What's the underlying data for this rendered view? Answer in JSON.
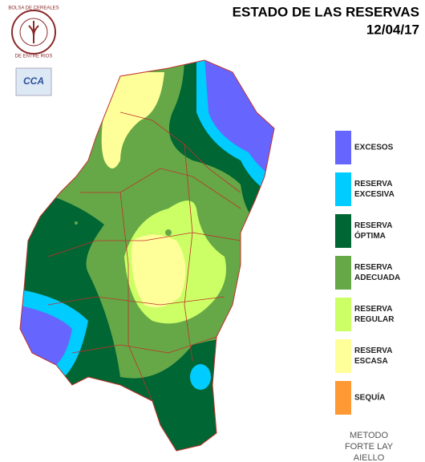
{
  "header": {
    "title": "ESTADO DE LAS RESERVAS",
    "date": "12/04/17"
  },
  "logo": {
    "ring_top": "BOLSA DE CEREALES",
    "ring_bottom": "DE ENTRE RIOS",
    "badge": "CCA"
  },
  "legend": [
    {
      "lines": [
        "EXCESOS"
      ],
      "color": "#6666ff"
    },
    {
      "lines": [
        "RESERVA",
        "EXCESIVA"
      ],
      "color": "#00ccff"
    },
    {
      "lines": [
        "RESERVA",
        "ÓPTIMA"
      ],
      "color": "#006633"
    },
    {
      "lines": [
        "RESERVA",
        "ADECUADA"
      ],
      "color": "#66a847"
    },
    {
      "lines": [
        "RESERVA",
        "REGULAR"
      ],
      "color": "#ccff66"
    },
    {
      "lines": [
        "RESERVA",
        "ESCASA"
      ],
      "color": "#ffff99"
    },
    {
      "lines": [
        "SEQUÍA"
      ],
      "color": "#ff9933"
    }
  ],
  "footer": {
    "lines": [
      "METODO",
      "FORTE LAY",
      "AIELLO"
    ]
  }
}
